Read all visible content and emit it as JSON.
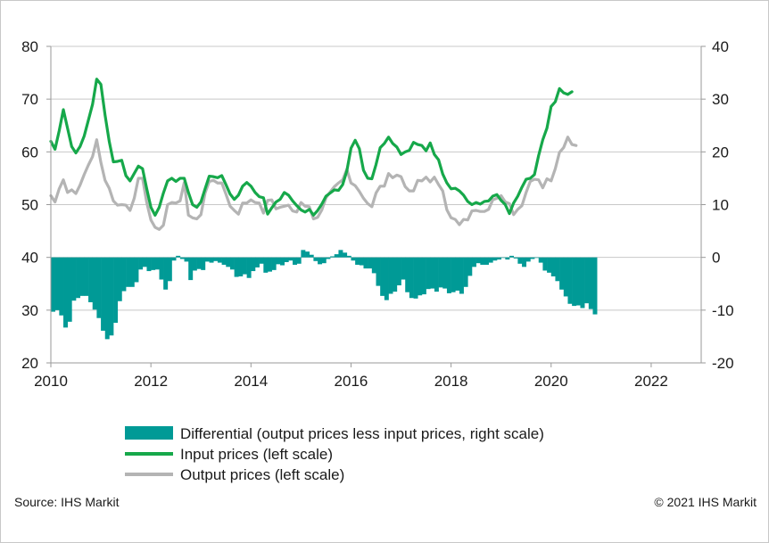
{
  "chart_data": {
    "type": "line",
    "colors": {
      "differential": "#009a96",
      "input": "#16a84a",
      "output": "#b4b4b4",
      "grid": "#c8c8c8",
      "axis": "#9a9a9a"
    },
    "x_range": [
      2010,
      2023
    ],
    "x_ticks": [
      "2010",
      "2012",
      "2014",
      "2016",
      "2018",
      "2020",
      "2022"
    ],
    "left_axis": {
      "range": [
        20,
        80
      ],
      "ticks": [
        "20",
        "30",
        "40",
        "50",
        "60",
        "70",
        "80"
      ]
    },
    "right_axis": {
      "range": [
        -20,
        40
      ],
      "ticks": [
        "-20",
        "-10",
        "0",
        "10",
        "20",
        "30",
        "40"
      ]
    },
    "grid": "horizontal",
    "legend_position": "bottom",
    "series": [
      {
        "name": "Differential (output prices less input prices, right scale)",
        "type": "bar",
        "axis": "right",
        "start": 2010.0,
        "step_months": 1,
        "values": [
          -10.3,
          -10,
          -11,
          -13.3,
          -12.2,
          -8.2,
          -7.7,
          -7.3,
          -7.3,
          -8.5,
          -9.9,
          -11.5,
          -13.9,
          -15.5,
          -14.8,
          -12.4,
          -8.3,
          -6.4,
          -5.6,
          -5.6,
          -4.7,
          -2.3,
          -1.8,
          -2.6,
          -2.4,
          -2.3,
          -4.2,
          -6.1,
          -4.5,
          -0.6,
          0.3,
          -0.3,
          -0.8,
          -4.3,
          -2.5,
          -2.2,
          -2.4,
          -0.8,
          -1,
          -0.7,
          -1,
          -1.4,
          -1.8,
          -2.3,
          -3.7,
          -3.6,
          -3.2,
          -3.9,
          -2.6,
          -1.9,
          -1.2,
          -2.9,
          -2.7,
          -2.4,
          -1.3,
          -1.5,
          -0.9,
          -0.6,
          -1.4,
          -1.2,
          1.4,
          1.1,
          0.5,
          -0.7,
          -1.3,
          -1.1,
          -0.3,
          0.2,
          0.6,
          1.4,
          0.9,
          0.3,
          -0.6,
          -1.4,
          -1.5,
          -2.1,
          -2.1,
          -3,
          -5.4,
          -7.3,
          -8.1,
          -6.9,
          -6.5,
          -5.3,
          -4.2,
          -6.6,
          -7.7,
          -7.8,
          -7.2,
          -7,
          -6,
          -5.9,
          -6.5,
          -5.7,
          -5.9,
          -6.8,
          -6.6,
          -6.3,
          -6.9,
          -5.6,
          -3.5,
          -1.8,
          -1.1,
          -1.4,
          -1.4,
          -1,
          -0.6,
          -0.4,
          -0.1,
          -0.4,
          0.3,
          -0.2,
          -1.2,
          -1.8,
          -0.8,
          -0.3,
          -0.1,
          -1,
          -2.5,
          -2.9,
          -3.6,
          -4.5,
          -6.1,
          -7.4,
          -8.8,
          -9.2,
          -9.1,
          -9.6,
          -8.7,
          -9.8,
          -10.8
        ]
      },
      {
        "name": "Input prices (left scale)",
        "type": "line",
        "axis": "left",
        "start": 2010.0,
        "step_months": 1,
        "values": [
          62,
          60.5,
          64,
          68,
          64.5,
          61,
          59.8,
          61,
          63,
          66,
          69,
          73.8,
          72.8,
          67,
          62,
          58.1,
          58.2,
          58.4,
          55.5,
          54.5,
          55.9,
          57.3,
          56.8,
          53,
          49.5,
          48,
          49.5,
          52.2,
          54.5,
          55,
          54.4,
          55,
          55,
          52.3,
          50,
          49.5,
          50.5,
          53,
          55.4,
          55.3,
          55.1,
          55.5,
          53.8,
          52,
          51,
          51.8,
          53.5,
          54.2,
          53.5,
          52.3,
          51.5,
          51.3,
          48.2,
          49.4,
          50.5,
          51,
          52.3,
          51.8,
          50.7,
          49.8,
          49,
          48.6,
          49.1,
          48,
          48.9,
          50.1,
          51.6,
          52.2,
          52.8,
          52.7,
          53.8,
          56.4,
          60.7,
          62.2,
          60.6,
          56.5,
          55,
          54.9,
          57.6,
          60.8,
          61.6,
          62.8,
          61.6,
          60.9,
          59.5,
          60,
          60.3,
          61.8,
          61.4,
          61.2,
          60.2,
          61.7,
          59.5,
          58.5,
          55.8,
          54.1,
          53,
          53.1,
          52.6,
          51.8,
          50.6,
          50,
          50.4,
          50.1,
          50.6,
          50.7,
          51.6,
          51.9,
          50.8,
          50,
          48.3,
          50.3,
          51.6,
          53.3,
          54.8,
          55,
          55.7,
          59.3,
          62.3,
          64.5,
          68.6,
          69.5,
          72,
          71.2,
          70.9,
          71.4
        ]
      },
      {
        "name": "Output prices (left scale)",
        "type": "line",
        "axis": "left",
        "start": 2010.0,
        "step_months": 1,
        "values": [
          51.7,
          50.5,
          53,
          54.7,
          52.3,
          52.8,
          52.1,
          53.7,
          55.7,
          57.5,
          59.1,
          62.3,
          58,
          54.6,
          53.1,
          50.7,
          49.9,
          50,
          49.9,
          48.9,
          51.2,
          55,
          55,
          50.4,
          47.1,
          45.7,
          45.3,
          46.1,
          50,
          50.4,
          50.3,
          50.7,
          54.2,
          48,
          47.5,
          47.3,
          48.1,
          52.2,
          54.4,
          54.6,
          54.1,
          54.1,
          52,
          49.7,
          48.9,
          48.2,
          50.3,
          50.3,
          50.9,
          50.4,
          50.3,
          48.4,
          50.8,
          50.9,
          49.2,
          49.5,
          49.7,
          49.9,
          48.8,
          48.6,
          50.4,
          49.7,
          49.6,
          47.3,
          47.6,
          49,
          51.3,
          52.4,
          53.4,
          54.1,
          54.7,
          56.7,
          54.1,
          53.6,
          52.5,
          51.2,
          50.2,
          49.6,
          52.2,
          53.5,
          53.5,
          55.9,
          55.1,
          55.6,
          55.3,
          53.4,
          52.6,
          52.6,
          54.6,
          54.5,
          55.2,
          54.3,
          55.2,
          53.8,
          52.6,
          49,
          47.5,
          47.2,
          46.2,
          47.2,
          47.1,
          48.8,
          48.9,
          48.7,
          48.7,
          49.1,
          50.9,
          51.2,
          51.7,
          50.5,
          50.2,
          48.1,
          49.1,
          49.8,
          52.3,
          54.4,
          54.8,
          54.7,
          53.2,
          54.9,
          54.5,
          56.8,
          59.9,
          60.8,
          62.8,
          61.4,
          61.2
        ]
      }
    ]
  },
  "legend": {
    "items": [
      {
        "label": "Differential (output prices less input prices, right scale)",
        "swatch": "bar"
      },
      {
        "label": "Input prices (left scale)",
        "swatch": "line"
      },
      {
        "label": "Output prices (left scale)",
        "swatch": "line"
      }
    ]
  },
  "footer": {
    "source": "Source: IHS Markit",
    "copyright": "© 2021 IHS Markit"
  }
}
